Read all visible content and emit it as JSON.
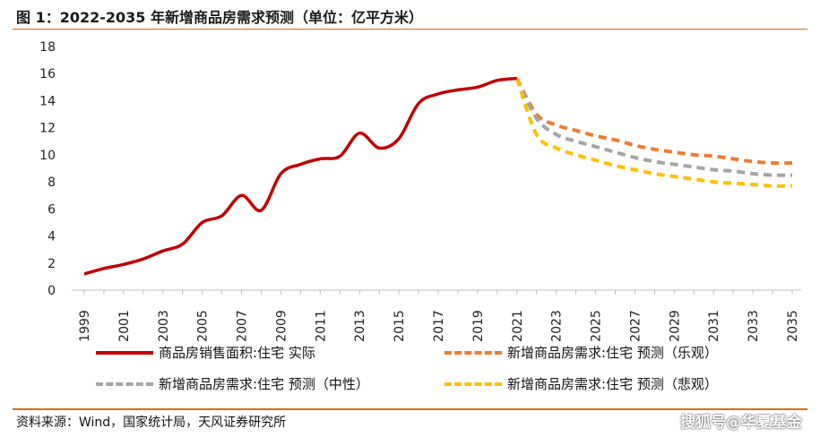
{
  "title": "图 1：2022-2035 年新增商品房需求预测（单位：亿平方米）",
  "source": "资料来源：Wind，国家统计局，天风证券研究所",
  "watermark": "搜狐号@华夏基金",
  "chart_data": {
    "type": "line",
    "xlabel": "",
    "ylabel": "",
    "ylim": [
      0,
      18
    ],
    "yticks": [
      0,
      2,
      4,
      6,
      8,
      10,
      12,
      14,
      16,
      18
    ],
    "xlim": [
      1999,
      2035
    ],
    "xticks": [
      "1999",
      "2001",
      "2003",
      "2005",
      "2007",
      "2009",
      "2011",
      "2013",
      "2015",
      "2017",
      "2019",
      "2021",
      "2023",
      "2025",
      "2027",
      "2029",
      "2031",
      "2033",
      "2035"
    ],
    "grid": false,
    "legend": "bottom",
    "series": [
      {
        "name": "商品房销售面积:住宅 实际",
        "color": "#c00000",
        "style": "solid",
        "x": [
          1999,
          2000,
          2001,
          2002,
          2003,
          2004,
          2005,
          2006,
          2007,
          2008,
          2009,
          2010,
          2011,
          2012,
          2013,
          2014,
          2015,
          2016,
          2017,
          2018,
          2019,
          2020,
          2021
        ],
        "y": [
          1.2,
          1.6,
          1.9,
          2.3,
          2.9,
          3.4,
          5.0,
          5.5,
          7.0,
          5.9,
          8.6,
          9.3,
          9.7,
          9.9,
          11.6,
          10.5,
          11.2,
          13.8,
          14.5,
          14.8,
          15.0,
          15.5,
          15.65
        ]
      },
      {
        "name": "新增商品房需求:住宅 预测（乐观）",
        "color": "#ed7d31",
        "style": "dashed",
        "x": [
          2021,
          2022,
          2023,
          2024,
          2025,
          2026,
          2027,
          2028,
          2029,
          2030,
          2031,
          2032,
          2033,
          2034,
          2035
        ],
        "y": [
          15.65,
          13.0,
          12.2,
          11.8,
          11.4,
          11.1,
          10.7,
          10.4,
          10.2,
          10.0,
          9.9,
          9.7,
          9.5,
          9.4,
          9.4
        ]
      },
      {
        "name": "新增商品房需求:住宅 预测（中性）",
        "color": "#a5a5a5",
        "style": "dashed",
        "x": [
          2021,
          2022,
          2023,
          2024,
          2025,
          2026,
          2027,
          2028,
          2029,
          2030,
          2031,
          2032,
          2033,
          2034,
          2035
        ],
        "y": [
          15.65,
          12.7,
          11.5,
          11.0,
          10.6,
          10.2,
          9.8,
          9.5,
          9.3,
          9.1,
          8.9,
          8.8,
          8.6,
          8.5,
          8.5
        ]
      },
      {
        "name": "新增商品房需求:住宅 预测（悲观）",
        "color": "#ffc000",
        "style": "dashed",
        "x": [
          2021,
          2022,
          2023,
          2024,
          2025,
          2026,
          2027,
          2028,
          2029,
          2030,
          2031,
          2032,
          2033,
          2034,
          2035
        ],
        "y": [
          15.65,
          11.5,
          10.5,
          10.0,
          9.6,
          9.2,
          8.9,
          8.6,
          8.4,
          8.2,
          8.0,
          7.9,
          7.8,
          7.7,
          7.7
        ]
      }
    ]
  }
}
